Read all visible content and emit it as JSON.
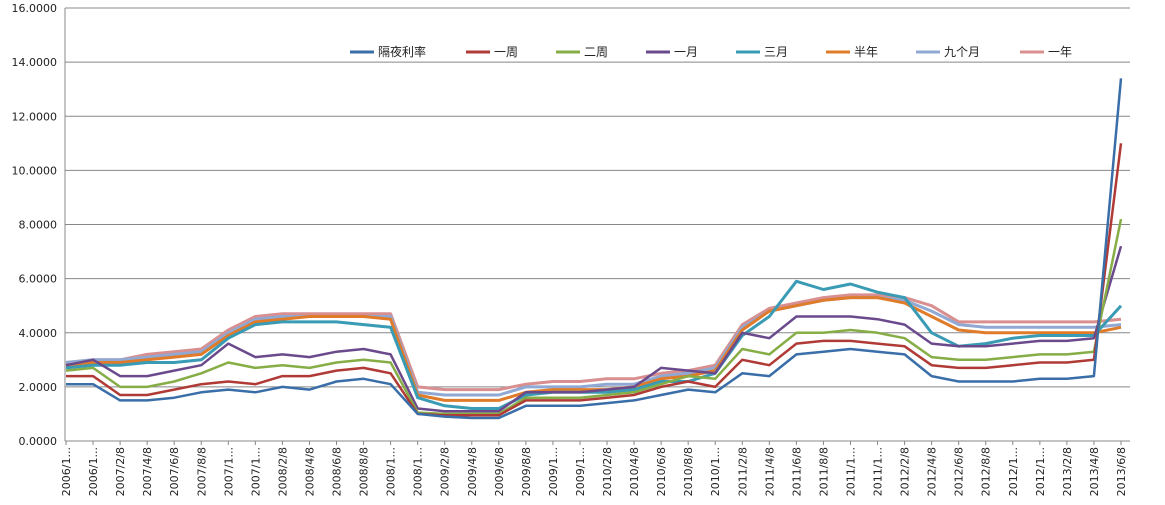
{
  "chart_data": {
    "type": "line",
    "title": "",
    "xlabel": "",
    "ylabel": "",
    "ylim": [
      0,
      16
    ],
    "y_ticks": [
      "0.0000",
      "2.0000",
      "4.0000",
      "6.0000",
      "8.0000",
      "10.0000",
      "12.0000",
      "14.0000",
      "16.0000"
    ],
    "x_tick_labels": [
      "2006/1...",
      "2006/1...",
      "2007/2/8",
      "2007/4/8",
      "2007/6/8",
      "2007/8/8",
      "2007/1...",
      "2007/1...",
      "2008/2/8",
      "2008/4/8",
      "2008/6/8",
      "2008/8/8",
      "2008/1...",
      "2008/1...",
      "2009/2/8",
      "2009/4/8",
      "2009/6/8",
      "2009/8/8",
      "2009/1...",
      "2009/1...",
      "2010/2/8",
      "2010/4/8",
      "2010/6/8",
      "2010/8/8",
      "2010/1...",
      "2011/2/8",
      "2011/4/8",
      "2011/6/8",
      "2011/8/8",
      "2011/1...",
      "2011/1...",
      "2012/2/8",
      "2012/4/8",
      "2012/6/8",
      "2012/8/8",
      "2012/1...",
      "2012/1...",
      "2013/2/8",
      "2013/4/8",
      "2013/6/8"
    ],
    "grid": "horizontal",
    "legend_position": "top",
    "series": [
      {
        "name": "隔夜利率",
        "color": "#3a6ea8",
        "values": [
          2.1,
          2.1,
          1.5,
          1.5,
          1.6,
          1.8,
          1.9,
          1.8,
          2.0,
          1.9,
          2.2,
          2.3,
          2.1,
          1.0,
          0.9,
          0.85,
          0.85,
          1.3,
          1.3,
          1.3,
          1.4,
          1.5,
          1.7,
          1.9,
          1.8,
          2.5,
          2.4,
          3.2,
          3.3,
          3.4,
          3.3,
          3.2,
          2.4,
          2.2,
          2.2,
          2.2,
          2.3,
          2.3,
          2.4,
          13.4
        ]
      },
      {
        "name": "一周",
        "color": "#b03a35",
        "values": [
          2.4,
          2.4,
          1.7,
          1.7,
          1.9,
          2.1,
          2.2,
          2.1,
          2.4,
          2.4,
          2.6,
          2.7,
          2.5,
          1.0,
          0.95,
          0.95,
          0.95,
          1.5,
          1.5,
          1.5,
          1.6,
          1.7,
          2.0,
          2.2,
          2.0,
          3.0,
          2.8,
          3.6,
          3.7,
          3.7,
          3.6,
          3.5,
          2.8,
          2.7,
          2.7,
          2.8,
          2.9,
          2.9,
          3.0,
          11.0
        ]
      },
      {
        "name": "二周",
        "color": "#86ad46",
        "values": [
          2.6,
          2.7,
          2.0,
          2.0,
          2.2,
          2.5,
          2.9,
          2.7,
          2.8,
          2.7,
          2.9,
          3.0,
          2.9,
          1.05,
          1.0,
          1.0,
          1.0,
          1.6,
          1.6,
          1.6,
          1.7,
          1.8,
          2.1,
          2.4,
          2.3,
          3.4,
          3.2,
          4.0,
          4.0,
          4.1,
          4.0,
          3.8,
          3.1,
          3.0,
          3.0,
          3.1,
          3.2,
          3.2,
          3.3,
          8.2
        ]
      },
      {
        "name": "一月",
        "color": "#6a4a8c",
        "values": [
          2.8,
          3.0,
          2.4,
          2.4,
          2.6,
          2.8,
          3.6,
          3.1,
          3.2,
          3.1,
          3.3,
          3.4,
          3.2,
          1.2,
          1.1,
          1.1,
          1.1,
          1.8,
          1.8,
          1.8,
          1.9,
          2.0,
          2.7,
          2.6,
          2.5,
          4.0,
          3.8,
          4.6,
          4.6,
          4.6,
          4.5,
          4.3,
          3.6,
          3.5,
          3.5,
          3.6,
          3.7,
          3.7,
          3.8,
          7.2
        ]
      },
      {
        "name": "三月",
        "color": "#3a9bb5",
        "values": [
          2.7,
          2.8,
          2.8,
          2.9,
          2.9,
          3.0,
          3.8,
          4.3,
          4.4,
          4.4,
          4.4,
          4.3,
          4.2,
          1.6,
          1.3,
          1.2,
          1.2,
          1.7,
          1.8,
          1.8,
          1.8,
          1.9,
          2.2,
          2.2,
          2.5,
          3.9,
          4.6,
          5.9,
          5.6,
          5.8,
          5.5,
          5.3,
          4.0,
          3.5,
          3.6,
          3.8,
          3.9,
          3.9,
          3.9,
          5.0
        ]
      },
      {
        "name": "半年",
        "color": "#e07b2a",
        "values": [
          2.8,
          2.9,
          2.9,
          3.0,
          3.1,
          3.2,
          3.9,
          4.4,
          4.5,
          4.6,
          4.6,
          4.6,
          4.5,
          1.7,
          1.5,
          1.5,
          1.5,
          1.8,
          1.9,
          1.9,
          1.9,
          2.0,
          2.3,
          2.4,
          2.6,
          4.1,
          4.8,
          5.0,
          5.2,
          5.3,
          5.3,
          5.1,
          4.6,
          4.1,
          4.0,
          4.0,
          4.0,
          4.0,
          4.0,
          4.2
        ]
      },
      {
        "name": "九个月",
        "color": "#8fa9d4",
        "values": [
          2.9,
          3.0,
          3.0,
          3.1,
          3.2,
          3.3,
          4.0,
          4.5,
          4.6,
          4.6,
          4.6,
          4.6,
          4.6,
          1.8,
          1.7,
          1.7,
          1.7,
          2.0,
          2.0,
          2.0,
          2.1,
          2.1,
          2.4,
          2.5,
          2.7,
          4.2,
          4.8,
          5.0,
          5.2,
          5.3,
          5.3,
          5.2,
          4.8,
          4.3,
          4.2,
          4.2,
          4.2,
          4.2,
          4.2,
          4.3
        ]
      },
      {
        "name": "一年",
        "color": "#d98f8f",
        "values": [
          2.9,
          3.0,
          3.0,
          3.2,
          3.3,
          3.4,
          4.1,
          4.6,
          4.7,
          4.7,
          4.7,
          4.7,
          4.7,
          2.0,
          1.9,
          1.9,
          1.9,
          2.1,
          2.2,
          2.2,
          2.3,
          2.3,
          2.5,
          2.6,
          2.8,
          4.3,
          4.9,
          5.1,
          5.3,
          5.4,
          5.4,
          5.3,
          5.0,
          4.4,
          4.4,
          4.4,
          4.4,
          4.4,
          4.4,
          4.5
        ]
      }
    ]
  }
}
